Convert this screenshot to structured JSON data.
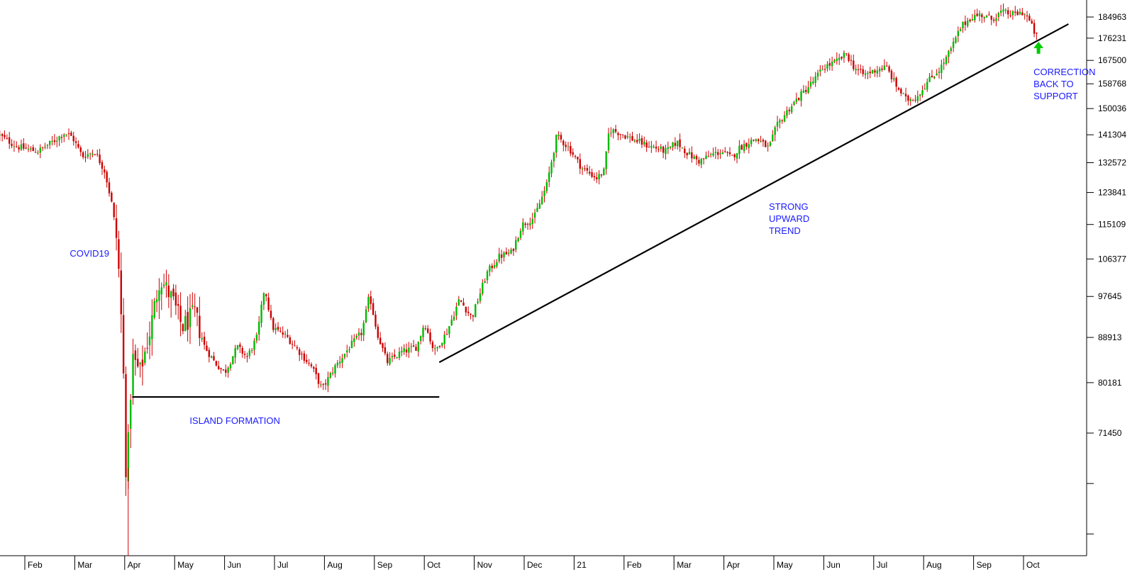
{
  "chart_data": {
    "type": "candlestick",
    "title": "",
    "xlabel": "",
    "ylabel": "",
    "y_scale": "log",
    "ylim": [
      52000,
      196000
    ],
    "y_ticks": [
      71450,
      80181,
      88913,
      97645,
      106377,
      115109,
      123841,
      132572,
      141304,
      150036,
      158768,
      167500,
      176231,
      184963
    ],
    "x_ticks": [
      "Feb",
      "Mar",
      "Apr",
      "May",
      "Jun",
      "Jul",
      "Aug",
      "Sep",
      "Oct",
      "Nov",
      "Dec",
      "21",
      "Feb",
      "Mar",
      "Apr",
      "May",
      "Jun",
      "Jul",
      "Aug",
      "Sep",
      "Oct"
    ],
    "x_range_months": [
      0,
      21.2
    ],
    "colors": {
      "up": "#00bb00",
      "down": "#cc0000",
      "note": "#1a1aff",
      "arrow": "#00cc00",
      "line": "#000000"
    },
    "price_path": [
      [
        -0.5,
        141500
      ],
      [
        -0.1,
        137500
      ],
      [
        0.3,
        136000
      ],
      [
        0.6,
        139000
      ],
      [
        0.85,
        142000
      ],
      [
        1.0,
        140500
      ],
      [
        1.2,
        134500
      ],
      [
        1.45,
        136000
      ],
      [
        1.65,
        130000
      ],
      [
        1.8,
        120000
      ],
      [
        1.9,
        110000
      ],
      [
        1.97,
        95000
      ],
      [
        2.03,
        80000
      ],
      [
        2.07,
        66000
      ],
      [
        2.12,
        70000
      ],
      [
        2.2,
        85000
      ],
      [
        2.35,
        82000
      ],
      [
        2.55,
        90000
      ],
      [
        2.75,
        102000
      ],
      [
        3.0,
        97000
      ],
      [
        3.2,
        91000
      ],
      [
        3.45,
        94000
      ],
      [
        3.65,
        87000
      ],
      [
        3.85,
        84000
      ],
      [
        4.05,
        82000
      ],
      [
        4.3,
        87000
      ],
      [
        4.5,
        85000
      ],
      [
        4.7,
        89000
      ],
      [
        4.85,
        100000
      ],
      [
        5.0,
        91000
      ],
      [
        5.3,
        89000
      ],
      [
        5.55,
        86000
      ],
      [
        5.8,
        83000
      ],
      [
        6.0,
        79000
      ],
      [
        6.25,
        83000
      ],
      [
        6.55,
        87000
      ],
      [
        6.8,
        90000
      ],
      [
        6.95,
        98000
      ],
      [
        7.1,
        90000
      ],
      [
        7.3,
        84000
      ],
      [
        7.6,
        86000
      ],
      [
        7.9,
        87000
      ],
      [
        8.05,
        92000
      ],
      [
        8.25,
        86000
      ],
      [
        8.5,
        90000
      ],
      [
        8.75,
        97000
      ],
      [
        9.0,
        93000
      ],
      [
        9.3,
        103000
      ],
      [
        9.55,
        107000
      ],
      [
        9.8,
        108000
      ],
      [
        10.0,
        115000
      ],
      [
        10.25,
        117000
      ],
      [
        10.5,
        126000
      ],
      [
        10.7,
        141000
      ],
      [
        10.95,
        137000
      ],
      [
        11.2,
        131000
      ],
      [
        11.5,
        128000
      ],
      [
        11.65,
        130000
      ],
      [
        11.75,
        143000
      ],
      [
        11.95,
        142000
      ],
      [
        12.2,
        140000
      ],
      [
        12.5,
        138000
      ],
      [
        12.7,
        137000
      ],
      [
        12.9,
        136000
      ],
      [
        13.1,
        139000
      ],
      [
        13.35,
        135000
      ],
      [
        13.55,
        133000
      ],
      [
        13.8,
        135000
      ],
      [
        14.0,
        136000
      ],
      [
        14.2,
        134000
      ],
      [
        14.35,
        137000
      ],
      [
        14.55,
        139000
      ],
      [
        14.7,
        140000
      ],
      [
        14.95,
        137000
      ],
      [
        15.1,
        144000
      ],
      [
        15.35,
        150000
      ],
      [
        15.6,
        155000
      ],
      [
        15.85,
        160000
      ],
      [
        16.05,
        165000
      ],
      [
        16.3,
        167000
      ],
      [
        16.5,
        170000
      ],
      [
        16.65,
        165000
      ],
      [
        16.85,
        162000
      ],
      [
        17.1,
        164000
      ],
      [
        17.3,
        165000
      ],
      [
        17.5,
        158000
      ],
      [
        17.7,
        153000
      ],
      [
        17.9,
        154000
      ],
      [
        18.15,
        160000
      ],
      [
        18.4,
        165000
      ],
      [
        18.6,
        172000
      ],
      [
        18.8,
        181000
      ],
      [
        19.0,
        185000
      ],
      [
        19.2,
        186000
      ],
      [
        19.4,
        184000
      ],
      [
        19.6,
        187000
      ],
      [
        19.85,
        186000
      ],
      [
        20.05,
        187000
      ],
      [
        20.15,
        184000
      ],
      [
        20.3,
        177000
      ]
    ],
    "support_lines": [
      {
        "kind": "horizontal",
        "from": [
          2.15,
          77600
        ],
        "to": [
          8.3,
          77600
        ]
      },
      {
        "kind": "trend",
        "from": [
          8.3,
          84000
        ],
        "to": [
          20.9,
          182000
        ]
      }
    ],
    "annotations": [
      {
        "text": [
          "COVID19"
        ],
        "at": [
          0.9,
          107000
        ]
      },
      {
        "text": [
          "ISLAND FORMATION"
        ],
        "at": [
          3.3,
          73000
        ]
      },
      {
        "text": [
          "STRONG",
          "UPWARD",
          "TREND"
        ],
        "at": [
          14.9,
          119000
        ]
      },
      {
        "text": [
          "CORRECTION",
          "BACK TO",
          "SUPPORT"
        ],
        "at": [
          20.2,
          162000
        ]
      }
    ],
    "arrow": {
      "at": [
        20.3,
        172000
      ],
      "direction": "up"
    }
  }
}
